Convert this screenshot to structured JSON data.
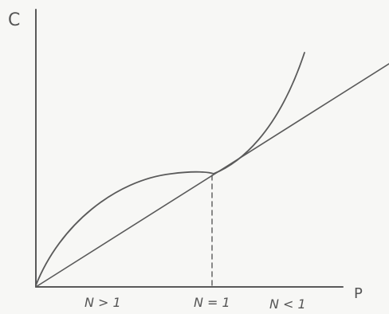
{
  "diagram": {
    "y_axis_label": "C",
    "x_axis_label": "P",
    "regions": [
      {
        "id": "left",
        "text": "N > 1"
      },
      {
        "id": "mid",
        "text": "N = 1"
      },
      {
        "id": "right",
        "text": "N < 1"
      }
    ],
    "colors": {
      "ink": "#5a5a5a",
      "paper": "#f7f7f5"
    }
  }
}
